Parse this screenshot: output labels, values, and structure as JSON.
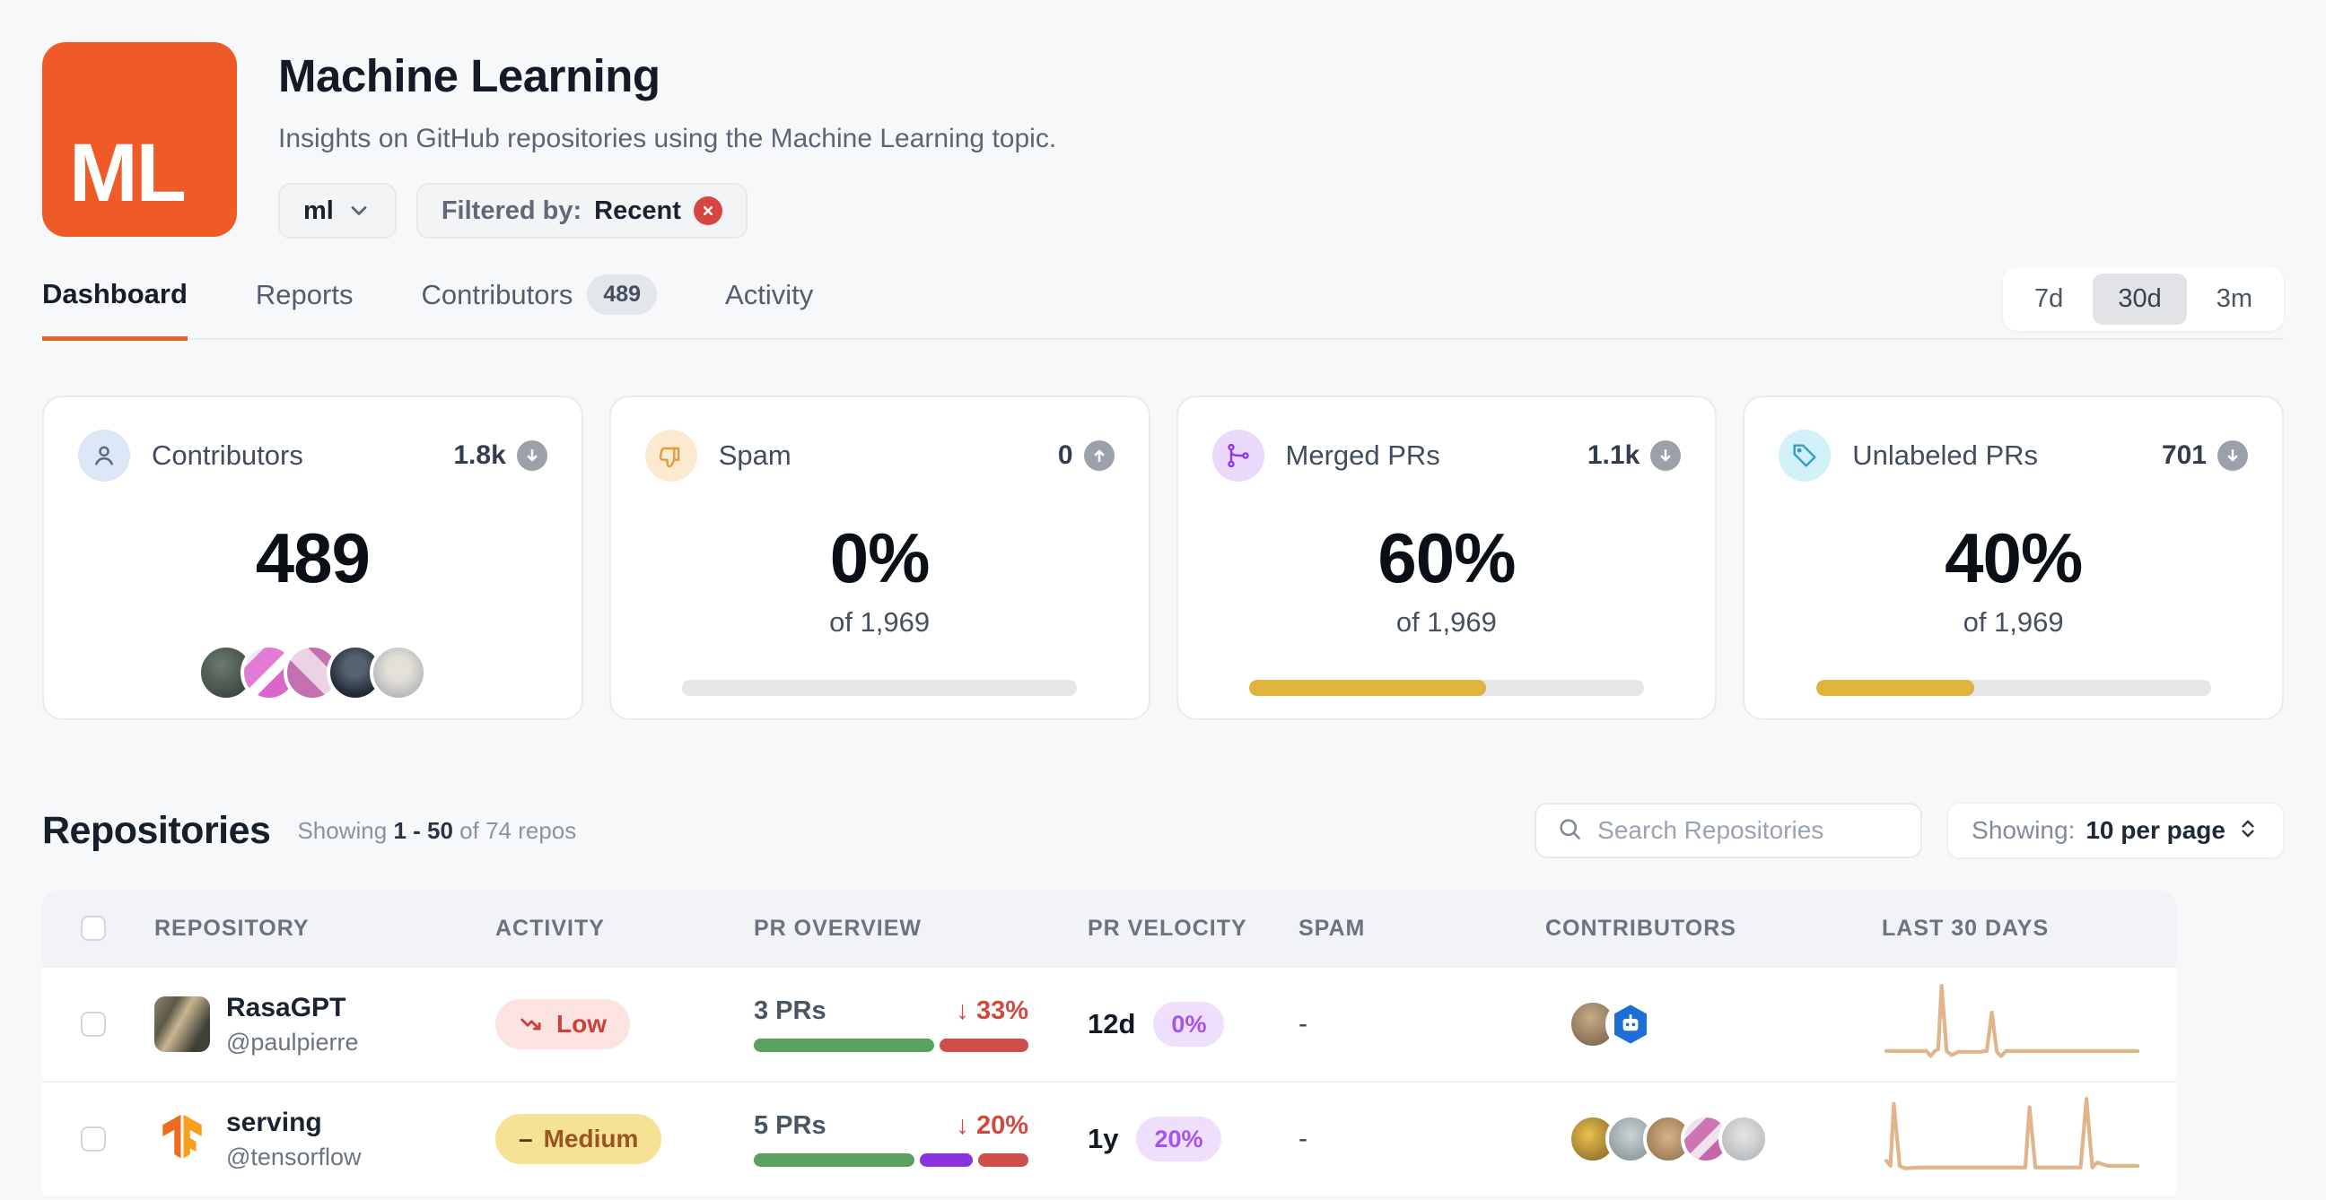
{
  "header": {
    "logo": "ML",
    "title": "Machine Learning",
    "subtitle": "Insights on GitHub repositories using the Machine Learning topic.",
    "insight_selector": {
      "value": "ml"
    },
    "filter_chip": {
      "label": "Filtered by:",
      "value": "Recent"
    }
  },
  "tabs": [
    {
      "label": "Dashboard",
      "active": true
    },
    {
      "label": "Reports",
      "active": false
    },
    {
      "label": "Contributors",
      "badge": "489",
      "active": false
    },
    {
      "label": "Activity",
      "active": false
    }
  ],
  "time_ranges": [
    {
      "label": "7d",
      "active": false
    },
    {
      "label": "30d",
      "active": true
    },
    {
      "label": "3m",
      "active": false
    }
  ],
  "stat_cards": [
    {
      "label": "Contributors",
      "icon": "person-icon",
      "total": "1.8k",
      "trend": "down",
      "value": "489"
    },
    {
      "label": "Spam",
      "icon": "thumbs-down-icon",
      "total": "0",
      "trend": "up",
      "value": "0%",
      "of_text": "of 1,969",
      "progress": 0
    },
    {
      "label": "Merged PRs",
      "icon": "git-merge-icon",
      "total": "1.1k",
      "trend": "down",
      "value": "60%",
      "of_text": "of 1,969",
      "progress": 60
    },
    {
      "label": "Unlabeled PRs",
      "icon": "tag-icon",
      "total": "701",
      "trend": "down",
      "value": "40%",
      "of_text": "of 1,969",
      "progress": 40
    }
  ],
  "repositories": {
    "title": "Repositories",
    "showing_prefix": "Showing",
    "showing_range": "1 - 50",
    "showing_suffix": "of 74 repos",
    "search_placeholder": "Search Repositories",
    "per_page_label": "Showing:",
    "per_page_value": "10 per page"
  },
  "icons": {
    "arrow_down": "↓",
    "dash": "–"
  },
  "table": {
    "columns": [
      "REPOSITORY",
      "ACTIVITY",
      "PR OVERVIEW",
      "PR VELOCITY",
      "SPAM",
      "CONTRIBUTORS",
      "LAST 30 DAYS"
    ],
    "rows": [
      {
        "name": "RasaGPT",
        "owner": "@paulpierre",
        "activity": "Low",
        "prs": "3 PRs",
        "pr_change": "33%",
        "pr_bar": [
          {
            "color": "#5aa05e",
            "w": 67
          },
          {
            "color": "#cf4f47",
            "w": 33
          }
        ],
        "velocity": "12d",
        "velocity_pct": "0%",
        "spam": "-",
        "sparkline": [
          [
            0,
            92
          ],
          [
            48,
            92
          ],
          [
            53,
            98
          ],
          [
            58,
            92
          ],
          [
            62,
            90
          ],
          [
            66,
            14
          ],
          [
            72,
            92
          ],
          [
            78,
            97
          ],
          [
            86,
            93
          ],
          [
            100,
            93
          ],
          [
            112,
            93
          ],
          [
            120,
            92
          ],
          [
            126,
            46
          ],
          [
            132,
            93
          ],
          [
            137,
            98
          ],
          [
            143,
            92
          ],
          [
            300,
            92
          ]
        ]
      },
      {
        "name": "serving",
        "owner": "@tensorflow",
        "activity": "Medium",
        "prs": "5 PRs",
        "pr_change": "20%",
        "pr_bar": [
          {
            "color": "#5aa05e",
            "w": 61
          },
          {
            "color": "#8a33dd",
            "w": 20
          },
          {
            "color": "#cf4f47",
            "w": 19
          }
        ],
        "velocity": "1y",
        "velocity_pct": "20%",
        "spam": "-",
        "sparkline": [
          [
            0,
            86
          ],
          [
            5,
            92
          ],
          [
            9,
            18
          ],
          [
            16,
            92
          ],
          [
            22,
            95
          ],
          [
            40,
            94
          ],
          [
            80,
            94
          ],
          [
            120,
            94
          ],
          [
            160,
            94
          ],
          [
            166,
            94
          ],
          [
            171,
            22
          ],
          [
            178,
            94
          ],
          [
            190,
            94
          ],
          [
            210,
            94
          ],
          [
            232,
            94
          ],
          [
            239,
            12
          ],
          [
            246,
            94
          ],
          [
            252,
            88
          ],
          [
            264,
            92
          ],
          [
            300,
            92
          ]
        ]
      }
    ]
  },
  "colors": {
    "brand_orange": "#ee5b27",
    "tab_underline": "#e8622c",
    "progress_gold": "#dfb43c",
    "green_bar": "#5aa05e",
    "red_bar": "#cf4f47",
    "purple_bar": "#8a33dd",
    "low_pill_bg": "#fae3e1",
    "low_pill_text": "#c8423a",
    "medium_pill_bg": "#f6e294",
    "medium_pill_text": "#9c5221",
    "velocity_pill_bg": "#efdffd",
    "velocity_pill_text": "#a254ef",
    "sparkline": "#e1b58b",
    "filter_x_bg": "#d64540"
  }
}
